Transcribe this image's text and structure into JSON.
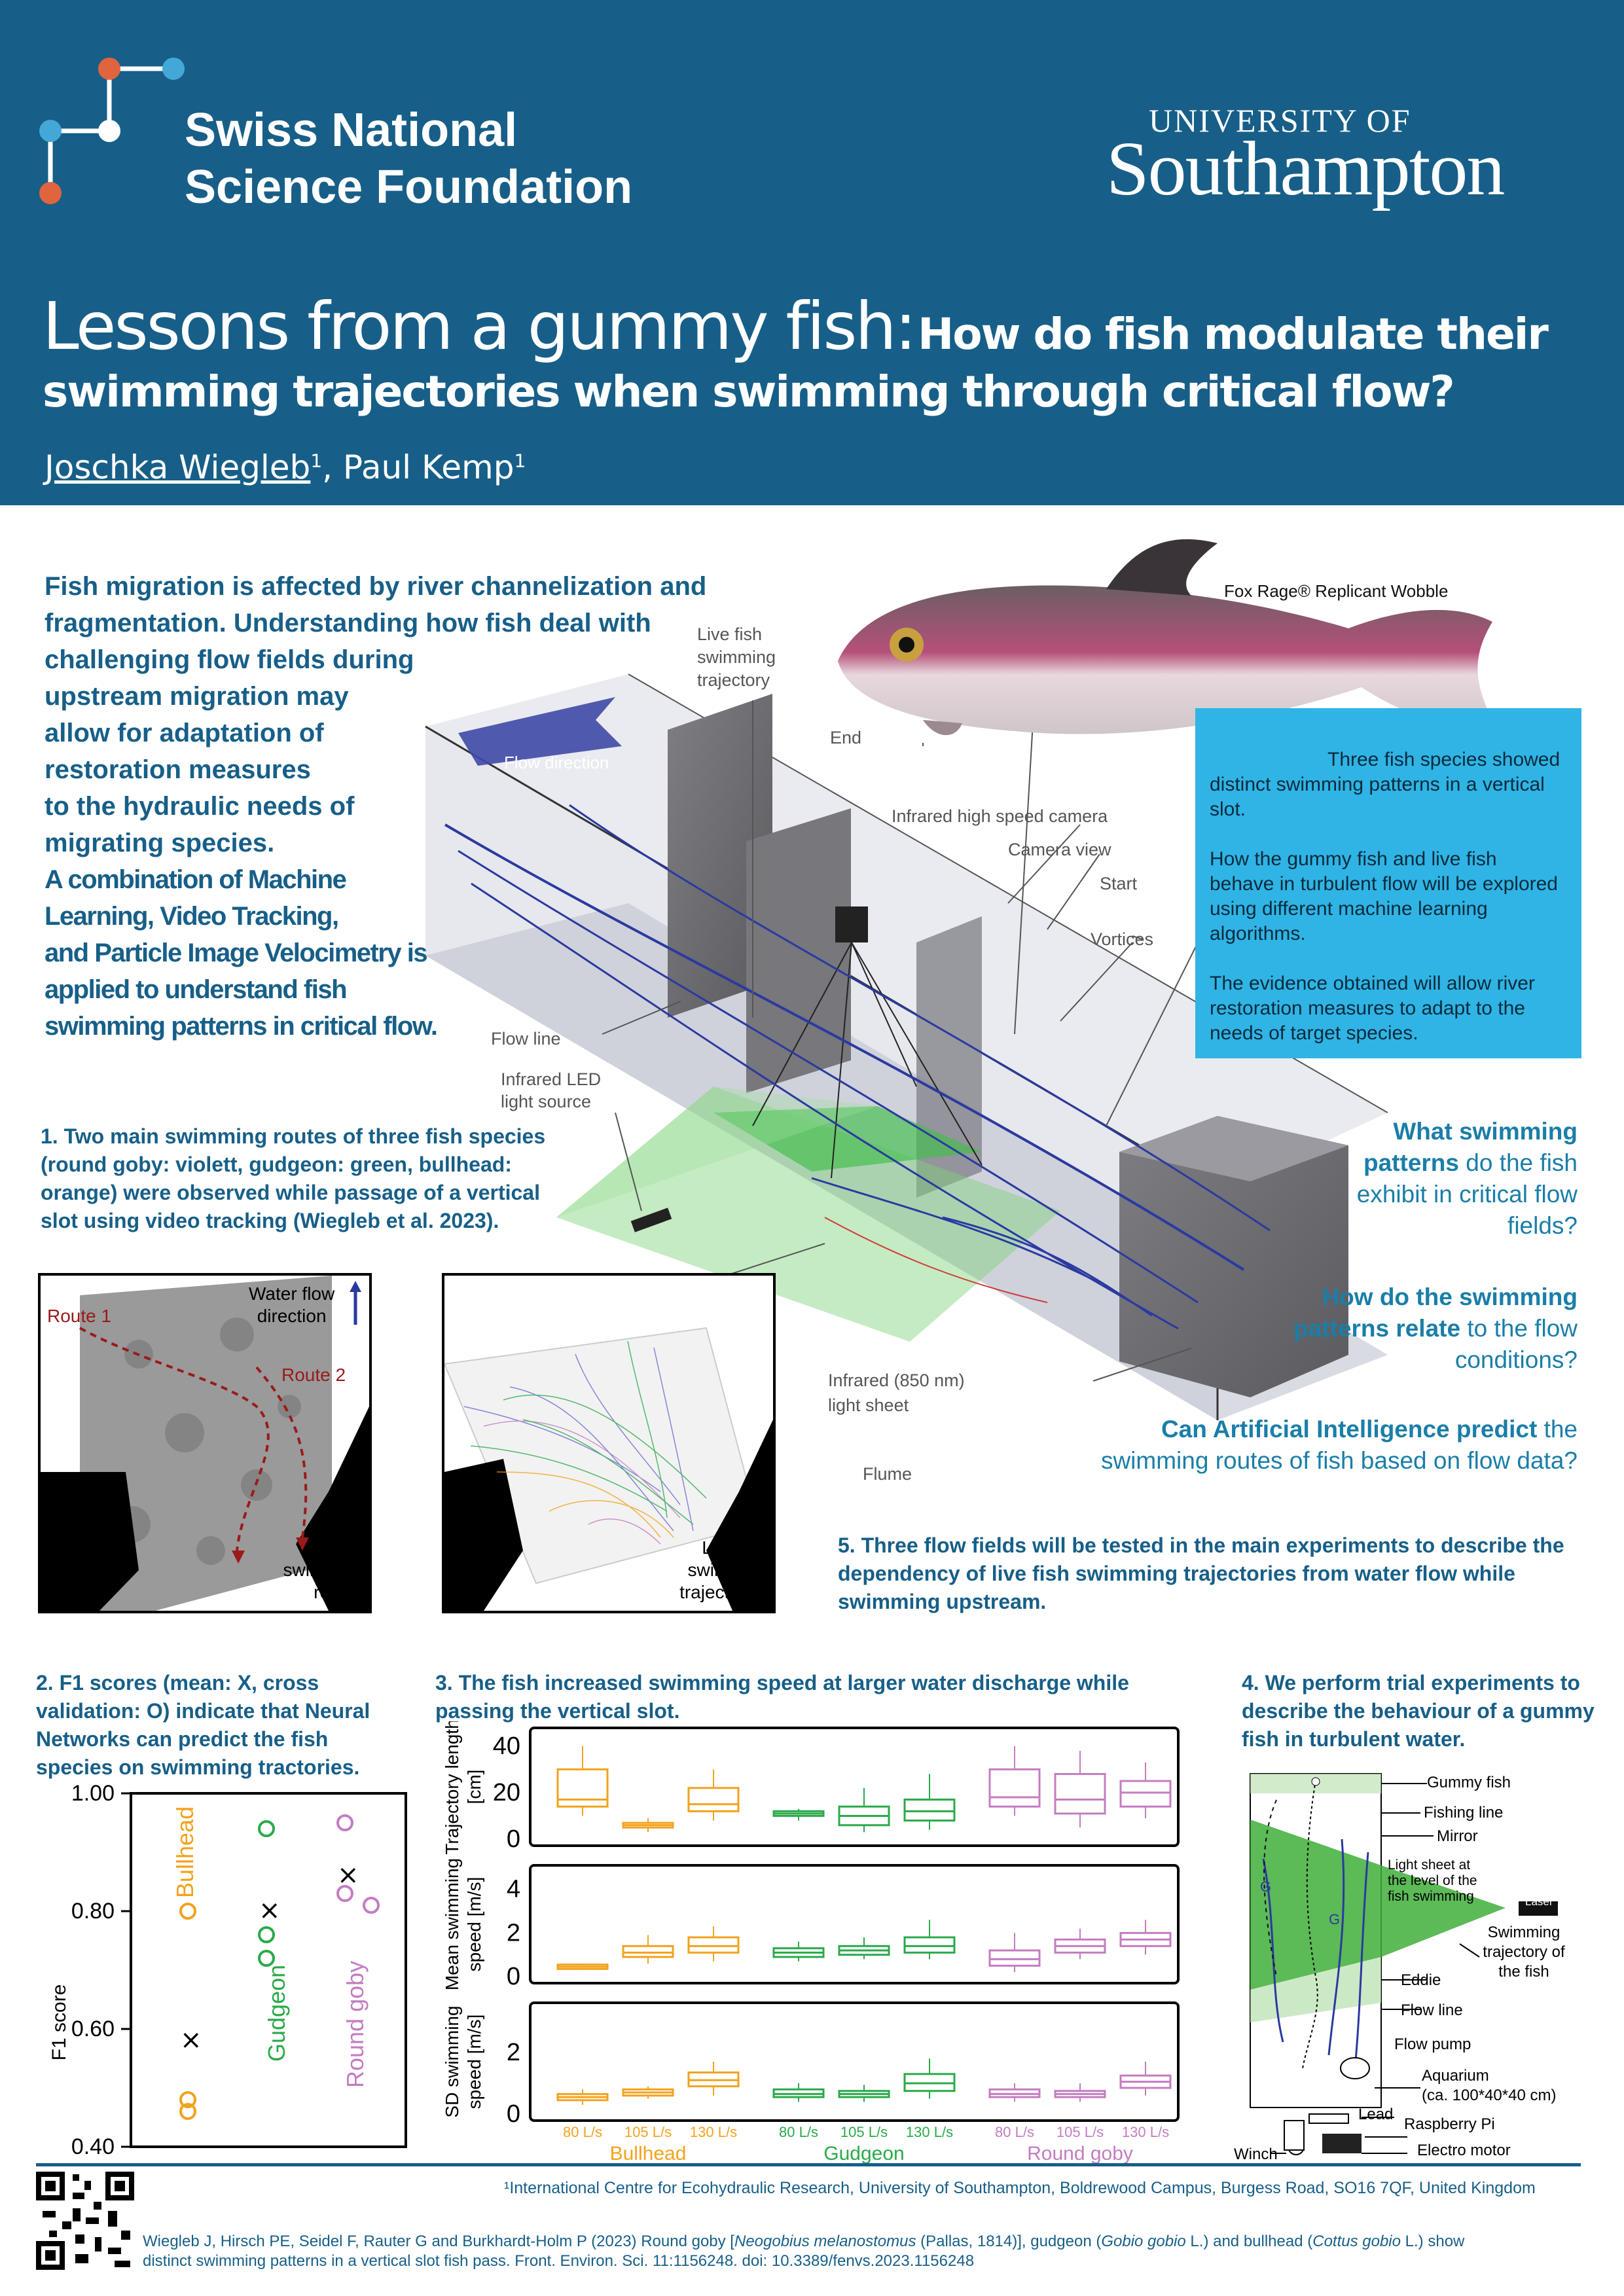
{
  "header": {
    "snsf_line1": "Swiss National",
    "snsf_line2": "Science Foundation",
    "soton_line1": "UNIVERSITY OF",
    "soton_line2": "Southampton",
    "title_main": "Lessons from a gummy fish:",
    "title_rest": "How do fish modulate their",
    "title_line2": "swimming trajectories when swimming through critical flow?",
    "author1": "Joschka Wiegleb",
    "author2": ", Paul Kemp",
    "affil_mark": "1"
  },
  "intro": {
    "lines": [
      "Fish migration is affected by river channelization and",
      "fragmentation. Understanding how fish deal with",
      "challenging flow fields during",
      "upstream migration may",
      "allow for adaptation of",
      "restoration measures",
      "to the hydraulic needs of",
      "migrating species."
    ],
    "bold_lines": [
      "A combination of Machine",
      "Learning, Video Tracking,",
      "and Particle Image Velocimetry is",
      "applied to understand fish",
      "swimming patterns in critical flow."
    ]
  },
  "diagram": {
    "fish_label": "Fox Rage® Replicant Wobble",
    "flow_direction": "Flow direction",
    "live_traj": [
      "Live fish",
      "swimming",
      "trajectory"
    ],
    "end": "End",
    "camera": "Infrared high speed camera",
    "camera_view": "Camera view",
    "start": "Start",
    "vortices": "Vortices",
    "flow_line": "Flow line",
    "led": [
      "Infrared LED",
      "light source"
    ],
    "light_sheet": [
      "Infrared (850 nm)",
      "light sheet"
    ],
    "flume": "Flume"
  },
  "infobox": {
    "p1": "Three fish species showed distinct swimming patterns in a vertical slot.",
    "p2": "How the gummy fish and live fish behave in turbulent flow will be explored using different machine learning algorithms.",
    "p3": "The evidence obtained will allow river restoration measures to adapt to the needs of target species."
  },
  "questions": {
    "q1_bold": "What swimming patterns",
    "q1_rest": "do the fish exhibit in critical flow fields?",
    "q2_bold": "How do the swimming patterns relate",
    "q2_rest": "to the flow conditions?",
    "q3_bold": "Can Artificial Intelligence predict",
    "q3_rest": "the swimming routes of fish based on flow  data?"
  },
  "sections": {
    "s1": "1. Two main swimming routes of three fish species (round goby: violett, gudgeon: green, bullhead: orange) were observed while passage of a vertical slot using video tracking (Wiegleb et al. 2023).",
    "s2": "2. F1 scores (mean: X, cross validation: O) indicate that Neural Networks can predict the fish species on swimming tractories.",
    "s3": "3. The fish increased swimming speed at larger water discharge while passing the vertical slot.",
    "s4": "4. We perform trial experiments to describe the behaviour of a gummy fish in turbulent water.",
    "s5": "5. Three flow fields will be tested in the main experiments to describe the dependency of live fish swimming trajectories from water flow while swimming upstream."
  },
  "fig1": {
    "route1": "Route 1",
    "route2": "Route 2",
    "water_flow": [
      "Water flow",
      "direction"
    ],
    "main_routes": [
      "Main",
      "swimming",
      "routes"
    ],
    "live_traj": [
      "Live fish",
      "swimming",
      "trajectories"
    ]
  },
  "fig4": {
    "labels": [
      "Gummy fish",
      "Fishing line",
      "Mirror",
      "Light sheet at the level of the fish swimming",
      "Laser",
      "Swimming trajectory of the fish",
      "Eddie",
      "Flow line",
      "Flow pump",
      "Aquarium",
      "(ca. 100*40*40 cm)",
      "Lead",
      "Raspberry Pi",
      "Winch",
      "Electro motor"
    ]
  },
  "chart_data": [
    {
      "type": "scatter",
      "ylabel": "F1 score",
      "ylim": [
        0.4,
        1.0
      ],
      "yticks": [
        "1.00",
        "0.80",
        "0.60",
        "0.40"
      ],
      "series": [
        {
          "name": "Bullhead",
          "color": "#f3a21d",
          "mean": 0.58,
          "cv": [
            0.8,
            0.48,
            0.46
          ]
        },
        {
          "name": "Gudgeon",
          "color": "#2aaa4a",
          "mean": 0.8,
          "cv": [
            0.94,
            0.76,
            0.72
          ]
        },
        {
          "name": "Round goby",
          "color": "#c47cc1",
          "mean": 0.86,
          "cv": [
            0.95,
            0.83,
            0.81
          ]
        }
      ]
    },
    {
      "type": "box",
      "x_labels": [
        "80 L/s",
        "105 L/s",
        "130 L/s",
        "80 L/s",
        "105 L/s",
        "130 L/s",
        "80 L/s",
        "105 L/s",
        "130 L/s"
      ],
      "groups": [
        "Bullhead",
        "Gudgeon",
        "Round goby"
      ],
      "colors": [
        "#f3a21d",
        "#2aaa4a",
        "#c47cc1"
      ],
      "panels": [
        {
          "ylabel": "Trajectory length [cm]",
          "ylim": [
            0,
            45
          ],
          "yticks": [
            "40",
            "20",
            "0"
          ],
          "tick_vals": [
            40,
            20,
            0
          ],
          "boxes": [
            [
              10,
              14,
              17,
              30,
              40
            ],
            [
              3,
              5,
              6,
              7,
              9
            ],
            [
              8,
              12,
              15,
              22,
              30
            ],
            [
              8,
              10,
              11,
              12,
              13
            ],
            [
              3,
              6,
              10,
              14,
              22
            ],
            [
              4,
              8,
              12,
              17,
              28
            ],
            [
              10,
              14,
              18,
              30,
              40
            ],
            [
              5,
              11,
              17,
              28,
              38
            ],
            [
              9,
              14,
              20,
              25,
              33
            ]
          ]
        },
        {
          "ylabel": "Mean swimming speed [m/s]",
          "ylim": [
            0,
            4.8
          ],
          "yticks": [
            "4",
            "2",
            "0"
          ],
          "tick_vals": [
            4,
            2,
            0
          ],
          "boxes": [
            [
              0.3,
              0.35,
              0.45,
              0.55,
              0.6
            ],
            [
              0.6,
              0.9,
              1.1,
              1.4,
              1.9
            ],
            [
              0.7,
              1.1,
              1.4,
              1.8,
              2.3
            ],
            [
              0.7,
              0.9,
              1.1,
              1.3,
              1.6
            ],
            [
              0.8,
              1.0,
              1.2,
              1.4,
              1.8
            ],
            [
              0.8,
              1.1,
              1.4,
              1.8,
              2.6
            ],
            [
              0.2,
              0.5,
              0.8,
              1.2,
              2.0
            ],
            [
              0.8,
              1.1,
              1.4,
              1.7,
              2.2
            ],
            [
              1.0,
              1.4,
              1.7,
              2.0,
              2.6
            ]
          ]
        },
        {
          "ylabel": "SD swimming speed [m/s]",
          "ylim": [
            0,
            3.4
          ],
          "yticks": [
            "2",
            "0"
          ],
          "tick_vals": [
            2,
            0
          ],
          "boxes": [
            [
              0.3,
              0.45,
              0.55,
              0.65,
              0.8
            ],
            [
              0.5,
              0.6,
              0.7,
              0.8,
              0.9
            ],
            [
              0.6,
              0.9,
              1.1,
              1.35,
              1.7
            ],
            [
              0.4,
              0.55,
              0.65,
              0.8,
              1.0
            ],
            [
              0.4,
              0.55,
              0.65,
              0.75,
              0.95
            ],
            [
              0.5,
              0.75,
              1.0,
              1.3,
              1.8
            ],
            [
              0.4,
              0.55,
              0.65,
              0.8,
              1.0
            ],
            [
              0.4,
              0.55,
              0.65,
              0.75,
              1.0
            ],
            [
              0.6,
              0.85,
              1.05,
              1.25,
              1.7
            ]
          ]
        }
      ]
    }
  ],
  "footer": {
    "affiliation": "¹International Centre for Ecohydraulic Research, University of Southampton, Boldrewood Campus, Burgess Road,  SO16 7QF, United Kingdom",
    "ref_a": "Wiegleb J, Hirsch PE, Seidel F, Rauter G and Burkhardt-Holm P (2023) Round goby [",
    "ref_b": "Neogobius melanostomus",
    "ref_c": " (Pallas, 1814)], gudgeon (",
    "ref_d": "Gobio gobio",
    "ref_e": " L.) and bullhead (",
    "ref_f": "Cottus gobio",
    "ref_g": " L.) show",
    "ref_line2": "distinct swimming patterns in a vertical slot fish pass. Front. Environ. Sci. 11:1156248. doi: 10.3389/fenvs.2023.1156248"
  }
}
